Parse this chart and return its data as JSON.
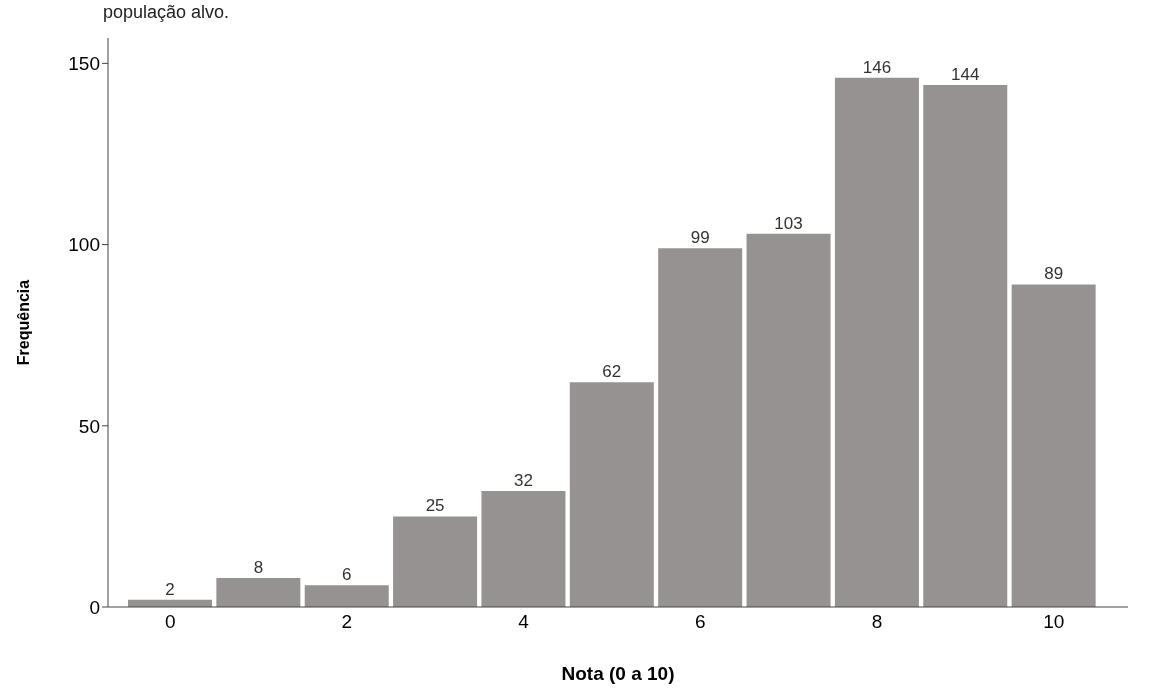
{
  "chart_data": {
    "type": "bar",
    "xlabel": "Nota (0 a 10)",
    "ylabel": "Frequência",
    "annotations": [
      "população alvo."
    ],
    "categories": [
      "0",
      null,
      "2",
      null,
      "4",
      null,
      "6",
      null,
      "8",
      null,
      "10"
    ],
    "values": [
      2,
      8,
      6,
      25,
      32,
      62,
      99,
      103,
      146,
      144,
      89
    ],
    "color": "#969291",
    "data_labels": true,
    "ylim": [
      0,
      157
    ],
    "yticks": [
      0,
      50,
      100,
      150
    ],
    "grid": false
  }
}
